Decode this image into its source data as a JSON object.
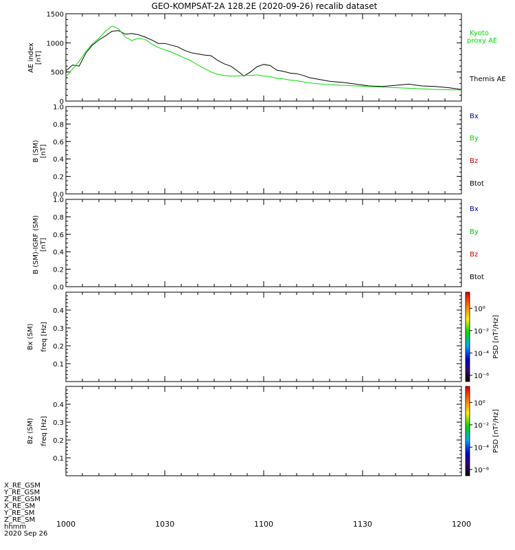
{
  "title": "GEO-KOMPSAT-2A 128.2E (2020-09-26) recalib dataset",
  "colors": {
    "ae_black": "#000000",
    "ae_green": "#00dd00",
    "bx": "#0000aa",
    "by": "#00cc00",
    "bz": "#cc0000",
    "btot": "#000000"
  },
  "x_axis": {
    "ticks": [
      {
        "value": 0,
        "label": "1000"
      },
      {
        "value": 30,
        "label": "1030"
      },
      {
        "value": 60,
        "label": "1100"
      },
      {
        "value": 90,
        "label": "1130"
      },
      {
        "value": 120,
        "label": "1200"
      }
    ],
    "range": [
      0,
      120
    ],
    "annotation_lines": [
      "X_RE_GSM",
      "Y_RE_GSM",
      "Z_RE_GSM",
      "X_RE_SM",
      "Y_RE_SM",
      "Z_RE_SM",
      "hhmm",
      "2020 Sep 26"
    ]
  },
  "panels": {
    "ae": {
      "ylabel_top": "AE index",
      "ylabel_unit": "[nT]",
      "ylim": [
        0,
        1500
      ],
      "ticks": [
        "0",
        "500",
        "1000",
        "1500"
      ],
      "legend_kyoto_1": "Kyoto",
      "legend_kyoto_2": "proxy AE",
      "legend_themis": "Themis AE"
    },
    "b": {
      "ylabel_top": "B (SM)",
      "ylabel_unit": "[nT]",
      "ylim": [
        0,
        1
      ],
      "ticks": [
        "0.0",
        "0.2",
        "0.4",
        "0.6",
        "0.8",
        "1.0"
      ],
      "legend": [
        "Bx",
        "By",
        "Bz",
        "Btot"
      ]
    },
    "bdiff": {
      "ylabel_top": "B (SM)-IGRF (SM)",
      "ylabel_unit": "[nT]",
      "ylim": [
        0,
        1
      ],
      "ticks": [
        "0.0",
        "0.2",
        "0.4",
        "0.6",
        "0.8",
        "1.0"
      ],
      "legend": [
        "Bx",
        "By",
        "Bz",
        "Btot"
      ]
    },
    "bx_spec": {
      "ylabel_1": "Bx (SM)",
      "ylabel_2": "freq [Hz]",
      "ylim": [
        0,
        0.5
      ],
      "ticks": [
        "0.1",
        "0.2",
        "0.3",
        "0.4"
      ],
      "cbar_label": "PSD [nT²/Hz]",
      "cbar_ticks": [
        "10⁰",
        "10⁻²",
        "10⁻⁴",
        "10⁻⁶"
      ]
    },
    "bz_spec": {
      "ylabel_1": "Bz (SM)",
      "ylabel_2": "freq [Hz]",
      "ylim": [
        0,
        0.5
      ],
      "ticks": [
        "0.1",
        "0.2",
        "0.3",
        "0.4"
      ],
      "cbar_label": "PSD [nT²/Hz]",
      "cbar_ticks": [
        "10⁰",
        "10⁻²",
        "10⁻⁴",
        "10⁻⁶"
      ]
    }
  },
  "chart_data": [
    {
      "type": "line",
      "xlabel": "",
      "ylabel": "AE index [nT]",
      "xlim": [
        0,
        120
      ],
      "ylim": [
        0,
        1500
      ],
      "series": [
        {
          "name": "Themis AE",
          "x": [
            0,
            2,
            4,
            6,
            8,
            10,
            12,
            14,
            16,
            18,
            20,
            22,
            24,
            26,
            28,
            30,
            32,
            34,
            36,
            38,
            40,
            42,
            44,
            46,
            48,
            50,
            52,
            54,
            56,
            58,
            60,
            62,
            64,
            66,
            68,
            70,
            72,
            74,
            76,
            78,
            80,
            84,
            88,
            92,
            96,
            100,
            104,
            108,
            112,
            116,
            120
          ],
          "y": [
            520,
            620,
            600,
            820,
            960,
            1050,
            1120,
            1200,
            1210,
            1150,
            1160,
            1140,
            1100,
            1050,
            990,
            990,
            960,
            930,
            870,
            830,
            810,
            790,
            780,
            700,
            640,
            600,
            520,
            430,
            500,
            590,
            630,
            610,
            530,
            510,
            480,
            470,
            440,
            400,
            380,
            360,
            340,
            320,
            290,
            260,
            250,
            270,
            290,
            260,
            250,
            230,
            200
          ]
        },
        {
          "name": "Kyoto proxy AE",
          "x": [
            0,
            2,
            4,
            6,
            8,
            10,
            12,
            14,
            16,
            18,
            20,
            22,
            24,
            26,
            28,
            30,
            32,
            34,
            36,
            38,
            40,
            42,
            44,
            46,
            48,
            50,
            52,
            54,
            56,
            58,
            60,
            62,
            64,
            66,
            68,
            70,
            72,
            74,
            76,
            78,
            80,
            84,
            88,
            92,
            96,
            100,
            104,
            108,
            112,
            116,
            120
          ],
          "y": [
            420,
            550,
            680,
            850,
            980,
            1080,
            1200,
            1290,
            1240,
            1100,
            1040,
            1080,
            1060,
            980,
            920,
            880,
            840,
            790,
            740,
            690,
            620,
            560,
            500,
            460,
            440,
            430,
            430,
            440,
            440,
            450,
            430,
            420,
            390,
            380,
            360,
            350,
            330,
            310,
            300,
            290,
            280,
            270,
            260,
            250,
            240,
            230,
            220,
            210,
            200,
            195,
            190
          ]
        }
      ]
    },
    {
      "type": "line",
      "ylabel": "B (SM) [nT]",
      "xlim": [
        0,
        120
      ],
      "ylim": [
        0,
        1
      ],
      "series": []
    },
    {
      "type": "line",
      "ylabel": "B (SM)-IGRF (SM) [nT]",
      "xlim": [
        0,
        120
      ],
      "ylim": [
        0,
        1
      ],
      "series": []
    },
    {
      "type": "heatmap",
      "ylabel": "Bx (SM) freq [Hz]",
      "xlim": [
        0,
        120
      ],
      "ylim": [
        0,
        0.5
      ],
      "values": []
    },
    {
      "type": "heatmap",
      "ylabel": "Bz (SM) freq [Hz]",
      "xlim": [
        0,
        120
      ],
      "ylim": [
        0,
        0.5
      ],
      "values": []
    }
  ]
}
